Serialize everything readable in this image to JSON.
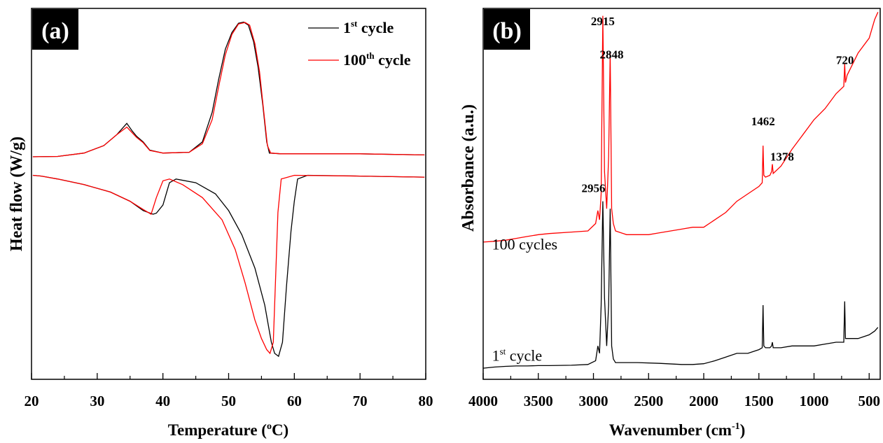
{
  "chart_data": [
    {
      "type": "line",
      "panel_label": "(a)",
      "xlabel": "Temperature (",
      "xlabel_sup": "o",
      "xlabel_end": "C)",
      "ylabel": "Heat flow (W/g)",
      "xlim": [
        20,
        80
      ],
      "ylim": [
        0,
        1
      ],
      "x_ticks": [
        "20",
        "30",
        "40",
        "50",
        "60",
        "70",
        "80"
      ],
      "colors": {
        "first": "#000000",
        "hundredth": "#ff0000"
      },
      "legend": {
        "placement": "top-right",
        "entries": [
          {
            "prefix": "1",
            "sup": "st",
            "suffix": " cycle",
            "color": "#000000"
          },
          {
            "prefix": "100",
            "sup": "th",
            "suffix": " cycle",
            "color": "#ff0000"
          }
        ]
      },
      "series": [
        {
          "name": "1st cycle heating",
          "color": "#000000",
          "x": [
            20.2,
            24,
            28,
            31,
            33,
            34.5,
            35.3,
            36,
            37,
            38,
            40,
            44,
            46,
            47.5,
            48.5,
            49.5,
            50.5,
            51.5,
            52.3,
            53,
            53.8,
            54.5,
            55.2,
            55.8,
            56.2,
            58,
            70,
            79.8
          ],
          "y": [
            0.6,
            0.601,
            0.61,
            0.63,
            0.66,
            0.69,
            0.67,
            0.655,
            0.64,
            0.618,
            0.61,
            0.612,
            0.64,
            0.72,
            0.81,
            0.89,
            0.935,
            0.96,
            0.963,
            0.955,
            0.91,
            0.84,
            0.74,
            0.64,
            0.61,
            0.608,
            0.608,
            0.605
          ]
        },
        {
          "name": "100th cycle heating",
          "color": "#ff0000",
          "x": [
            20.2,
            24,
            28,
            31,
            33,
            34.5,
            35.3,
            36,
            37,
            38,
            40,
            44,
            46,
            47.5,
            48.5,
            49.5,
            50.5,
            51.5,
            52.5,
            53.2,
            54,
            54.7,
            55.3,
            55.9,
            56.4,
            58,
            70,
            79.8
          ],
          "y": [
            0.6,
            0.601,
            0.61,
            0.63,
            0.66,
            0.68,
            0.665,
            0.652,
            0.638,
            0.617,
            0.61,
            0.612,
            0.635,
            0.7,
            0.79,
            0.875,
            0.93,
            0.958,
            0.962,
            0.955,
            0.905,
            0.83,
            0.73,
            0.63,
            0.61,
            0.608,
            0.608,
            0.605
          ]
        },
        {
          "name": "1st cycle cooling",
          "color": "#000000",
          "x": [
            79.8,
            70,
            62,
            60.5,
            60,
            59.5,
            58.8,
            58.2,
            57.6,
            57,
            56.5,
            55.5,
            54,
            52,
            50,
            48,
            45,
            42,
            41,
            40,
            39,
            38.5,
            37,
            35,
            32,
            28,
            24,
            21.5,
            20.2
          ],
          "y": [
            0.545,
            0.548,
            0.55,
            0.54,
            0.48,
            0.4,
            0.25,
            0.1,
            0.062,
            0.07,
            0.1,
            0.2,
            0.3,
            0.39,
            0.455,
            0.5,
            0.53,
            0.54,
            0.53,
            0.47,
            0.448,
            0.445,
            0.455,
            0.48,
            0.505,
            0.525,
            0.54,
            0.548,
            0.55
          ]
        },
        {
          "name": "100th cycle cooling",
          "color": "#ff0000",
          "x": [
            79.8,
            70,
            60,
            58,
            57.5,
            57.2,
            56.8,
            56.3,
            55.8,
            55,
            54,
            52.5,
            51,
            49,
            46,
            43,
            41,
            40,
            39,
            38.2,
            37,
            35,
            32,
            28,
            24,
            21.5,
            20.2
          ],
          "y": [
            0.545,
            0.548,
            0.55,
            0.54,
            0.45,
            0.3,
            0.1,
            0.07,
            0.08,
            0.11,
            0.16,
            0.26,
            0.35,
            0.43,
            0.49,
            0.525,
            0.54,
            0.535,
            0.49,
            0.445,
            0.458,
            0.48,
            0.505,
            0.525,
            0.54,
            0.548,
            0.55
          ]
        }
      ]
    },
    {
      "type": "line",
      "panel_label": "(b)",
      "xlabel": "Wavenumber (cm",
      "xlabel_sup": "-1",
      "xlabel_end": ")",
      "ylabel": "Absorbance (a.u.)",
      "xlim": [
        4000,
        400
      ],
      "ylim": [
        0,
        1
      ],
      "x_ticks": [
        "4000",
        "3500",
        "3000",
        "2500",
        "2000",
        "1500",
        "1000",
        "500"
      ],
      "x_tick_values": [
        4000,
        3500,
        3000,
        2500,
        2000,
        1500,
        1000,
        500
      ],
      "colors": {
        "first": "#000000",
        "hundredth": "#ff0000"
      },
      "curve_labels": [
        {
          "text": "100 cycles",
          "x": 3920,
          "y": 0.35
        },
        {
          "prefix": "1",
          "sup": "st",
          "suffix": " cycle",
          "x": 3920,
          "y": 0.05
        }
      ],
      "peak_labels": [
        {
          "text": "2915",
          "x": 2915,
          "y": 0.955
        },
        {
          "text": "2848",
          "x": 2835,
          "y": 0.865
        },
        {
          "text": "2956",
          "x": 3000,
          "y": 0.505
        },
        {
          "text": "1462",
          "x": 1462,
          "y": 0.685
        },
        {
          "text": "1378",
          "x": 1290,
          "y": 0.59
        },
        {
          "text": "720",
          "x": 720,
          "y": 0.85
        }
      ],
      "series": [
        {
          "name": "100 cycles",
          "color": "#ff0000",
          "x": [
            4000,
            3900,
            3800,
            3700,
            3600,
            3500,
            3400,
            3200,
            3050,
            2980,
            2960,
            2945,
            2930,
            2915,
            2900,
            2880,
            2862,
            2848,
            2835,
            2820,
            2800,
            2700,
            2600,
            2500,
            2400,
            2300,
            2200,
            2100,
            2050,
            2000,
            1900,
            1800,
            1700,
            1600,
            1500,
            1470,
            1462,
            1455,
            1440,
            1400,
            1385,
            1378,
            1370,
            1300,
            1200,
            1100,
            1000,
            900,
            800,
            730,
            722,
            715,
            700,
            600,
            500,
            450,
            420
          ],
          "y": [
            0.37,
            0.372,
            0.375,
            0.38,
            0.385,
            0.39,
            0.393,
            0.397,
            0.4,
            0.42,
            0.455,
            0.43,
            0.5,
            0.98,
            0.56,
            0.46,
            0.6,
            0.88,
            0.46,
            0.42,
            0.4,
            0.39,
            0.39,
            0.39,
            0.395,
            0.4,
            0.405,
            0.41,
            0.41,
            0.41,
            0.43,
            0.45,
            0.48,
            0.5,
            0.52,
            0.53,
            0.63,
            0.55,
            0.545,
            0.55,
            0.56,
            0.58,
            0.555,
            0.575,
            0.62,
            0.66,
            0.7,
            0.73,
            0.77,
            0.79,
            0.85,
            0.8,
            0.82,
            0.88,
            0.92,
            0.97,
            0.99
          ]
        },
        {
          "name": "1st cycle",
          "color": "#000000",
          "x": [
            4000,
            3900,
            3800,
            3700,
            3600,
            3500,
            3400,
            3200,
            3050,
            2980,
            2960,
            2945,
            2930,
            2915,
            2900,
            2880,
            2862,
            2848,
            2835,
            2820,
            2800,
            2600,
            2400,
            2200,
            2100,
            2000,
            1900,
            1800,
            1700,
            1600,
            1500,
            1470,
            1462,
            1455,
            1440,
            1400,
            1385,
            1378,
            1370,
            1300,
            1200,
            1100,
            1000,
            900,
            800,
            730,
            722,
            715,
            700,
            600,
            500,
            450,
            420
          ],
          "y": [
            0.03,
            0.033,
            0.035,
            0.036,
            0.036,
            0.037,
            0.037,
            0.038,
            0.04,
            0.05,
            0.09,
            0.07,
            0.2,
            0.48,
            0.22,
            0.09,
            0.2,
            0.46,
            0.09,
            0.055,
            0.045,
            0.045,
            0.043,
            0.04,
            0.04,
            0.042,
            0.05,
            0.06,
            0.07,
            0.07,
            0.08,
            0.085,
            0.2,
            0.09,
            0.085,
            0.085,
            0.09,
            0.1,
            0.085,
            0.085,
            0.09,
            0.09,
            0.09,
            0.095,
            0.1,
            0.1,
            0.21,
            0.11,
            0.11,
            0.11,
            0.12,
            0.13,
            0.14
          ]
        }
      ]
    }
  ]
}
